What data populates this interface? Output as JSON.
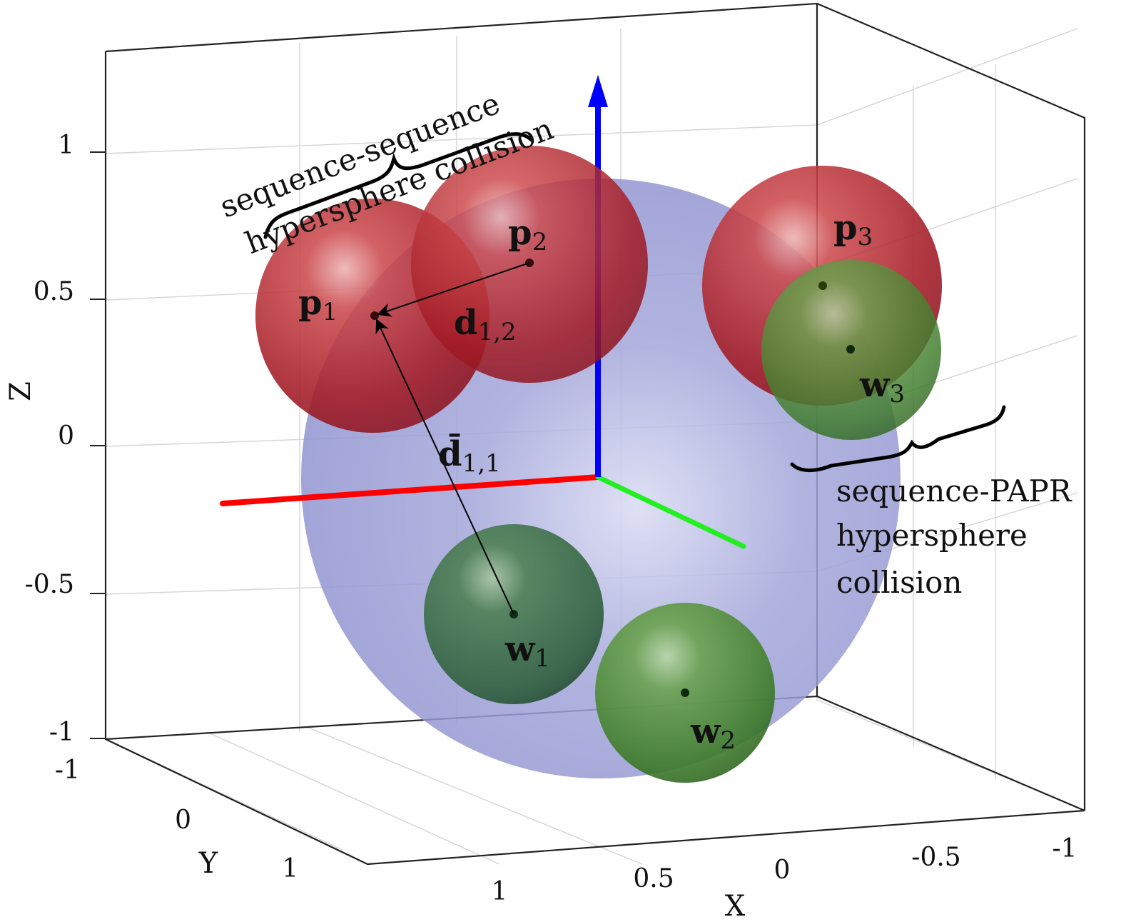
{
  "axes": {
    "z_label": "Z",
    "y_label": "Y",
    "x_label": "X",
    "z_ticks": [
      "1",
      "0.5",
      "0",
      "-0.5",
      "-1"
    ],
    "y_ticks": [
      "-1",
      "0",
      "1"
    ],
    "x_ticks": [
      "1",
      "0.5",
      "0",
      "-0.5",
      "-1"
    ]
  },
  "annotations": {
    "seq_seq_line1": "sequence-sequence",
    "seq_seq_line2": "hypersphere collision",
    "seq_papr_line1": "sequence-PAPR",
    "seq_papr_line2": "hypersphere",
    "seq_papr_line3": "collision"
  },
  "points": {
    "p1": {
      "base": "p",
      "sub": "1"
    },
    "p2": {
      "base": "p",
      "sub": "2"
    },
    "p3": {
      "base": "p",
      "sub": "3"
    },
    "w1": {
      "base": "w",
      "sub": "1"
    },
    "w2": {
      "base": "w",
      "sub": "2"
    },
    "w3": {
      "base": "w",
      "sub": "3"
    }
  },
  "vectors": {
    "d12": {
      "base": "d",
      "sub": "1,2"
    },
    "dbar11": {
      "base": "d̄",
      "sub": "1,1"
    }
  },
  "colors": {
    "unit_sphere": "#7f80c4",
    "sequence_sphere": "#b11e28",
    "papr_sphere": "#3f8a2a",
    "axis_x": "#ff0000",
    "axis_y": "#00e000",
    "axis_z": "#0000ff"
  }
}
